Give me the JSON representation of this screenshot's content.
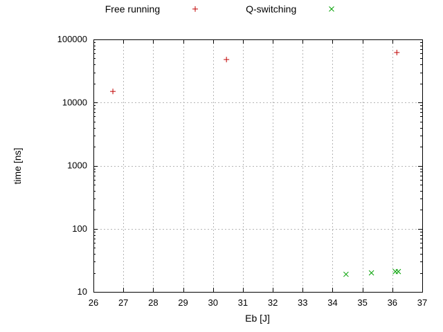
{
  "legend": {
    "items": [
      {
        "label": "Free running",
        "marker": "plus",
        "color": "#c00000"
      },
      {
        "label": "Q-switching",
        "marker": "cross",
        "color": "#00a000"
      }
    ]
  },
  "chart_data": {
    "type": "scatter",
    "title": "",
    "xlabel": "Eb [J]",
    "ylabel": "time [ns]",
    "xlim": [
      26,
      37
    ],
    "ylim": [
      10,
      100000
    ],
    "yscale": "log",
    "grid": true,
    "grid_color": "#b4b4b4",
    "x_ticks": [
      26,
      27,
      28,
      29,
      30,
      31,
      32,
      33,
      34,
      35,
      36,
      37
    ],
    "y_ticks": [
      10,
      100,
      1000,
      10000,
      100000
    ],
    "legend_position": "top",
    "series": [
      {
        "name": "Free running",
        "marker": "plus",
        "color": "#c00000",
        "points": [
          [
            26.65,
            15000
          ],
          [
            30.45,
            48000
          ],
          [
            36.15,
            62000
          ]
        ]
      },
      {
        "name": "Q-switching",
        "marker": "cross",
        "color": "#00a000",
        "points": [
          [
            34.45,
            19
          ],
          [
            35.3,
            20
          ],
          [
            36.1,
            21
          ],
          [
            36.2,
            21
          ]
        ]
      }
    ]
  }
}
